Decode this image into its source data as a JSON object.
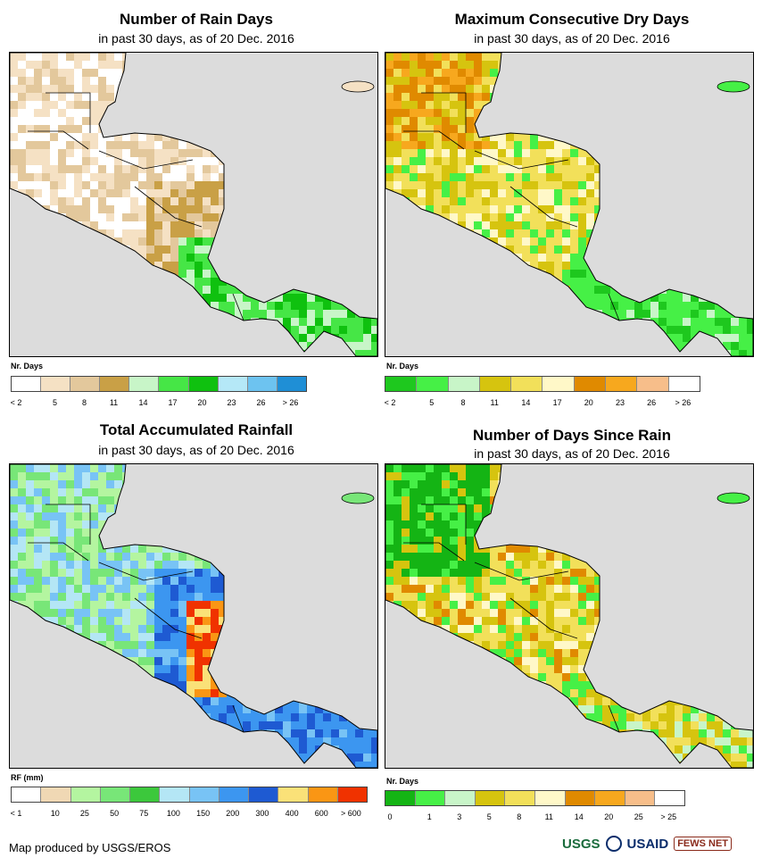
{
  "panels": [
    {
      "title": "Number of Rain Days",
      "subtitle": "in past 30 days, as of 20 Dec. 2016",
      "unit": "Nr. Days",
      "colors": [
        "#ffffff",
        "#f5e1c4",
        "#e3c89c",
        "#c9a046",
        "#c8f5c8",
        "#46e646",
        "#0fc10f",
        "#b5e8f7",
        "#6dc3f0",
        "#1f8fd6"
      ],
      "ticks": [
        "< 2",
        "5",
        "8",
        "11",
        "14",
        "17",
        "20",
        "23",
        "26",
        "> 26"
      ],
      "palette": "rain"
    },
    {
      "title": "Maximum Consecutive Dry Days",
      "subtitle": "in past 30 days, as of 20 Dec. 2016",
      "unit": "Nr. Days",
      "colors": [
        "#1ec81e",
        "#46f046",
        "#c8f5c8",
        "#d6c40f",
        "#f2e05a",
        "#fff8c8",
        "#e08a00",
        "#f7a81e",
        "#f7be8a",
        "#ffffff"
      ],
      "ticks": [
        "< 2",
        "5",
        "8",
        "11",
        "14",
        "17",
        "20",
        "23",
        "26",
        "> 26"
      ],
      "palette": "dry"
    },
    {
      "title": "Total Accumulated Rainfall",
      "subtitle": "in past 30 days, as of 20 Dec. 2016",
      "unit": "RF (mm)",
      "colors": [
        "#ffffff",
        "#f0d8b4",
        "#b4f5a0",
        "#78e678",
        "#3cc83c",
        "#b4e6f5",
        "#78c3f5",
        "#3c96f0",
        "#1e5ad2",
        "#fae178",
        "#fa9614",
        "#f03200"
      ],
      "ticks": [
        "< 1",
        "10",
        "25",
        "50",
        "75",
        "100",
        "150",
        "200",
        "300",
        "400",
        "600",
        "> 600"
      ],
      "palette": "total"
    },
    {
      "title": "Number of Days Since Rain",
      "subtitle": "in past 30 days, as of 20 Dec. 2016",
      "unit": "Nr. Days",
      "colors": [
        "#14b414",
        "#46f046",
        "#c8f5c8",
        "#d6c40f",
        "#f2e05a",
        "#fff8c8",
        "#e08a00",
        "#f7a81e",
        "#f7be8a",
        "#ffffff"
      ],
      "ticks": [
        "0",
        "1",
        "3",
        "5",
        "8",
        "11",
        "14",
        "20",
        "25",
        "> 25"
      ],
      "palette": "since"
    }
  ],
  "credit": "Map produced by USGS/EROS",
  "logos": {
    "usgs": "USGS",
    "usaid": "USAID",
    "fews": "FEWS NET"
  },
  "colors": {
    "ocean": "#dcdcdc",
    "border": "#000000"
  }
}
